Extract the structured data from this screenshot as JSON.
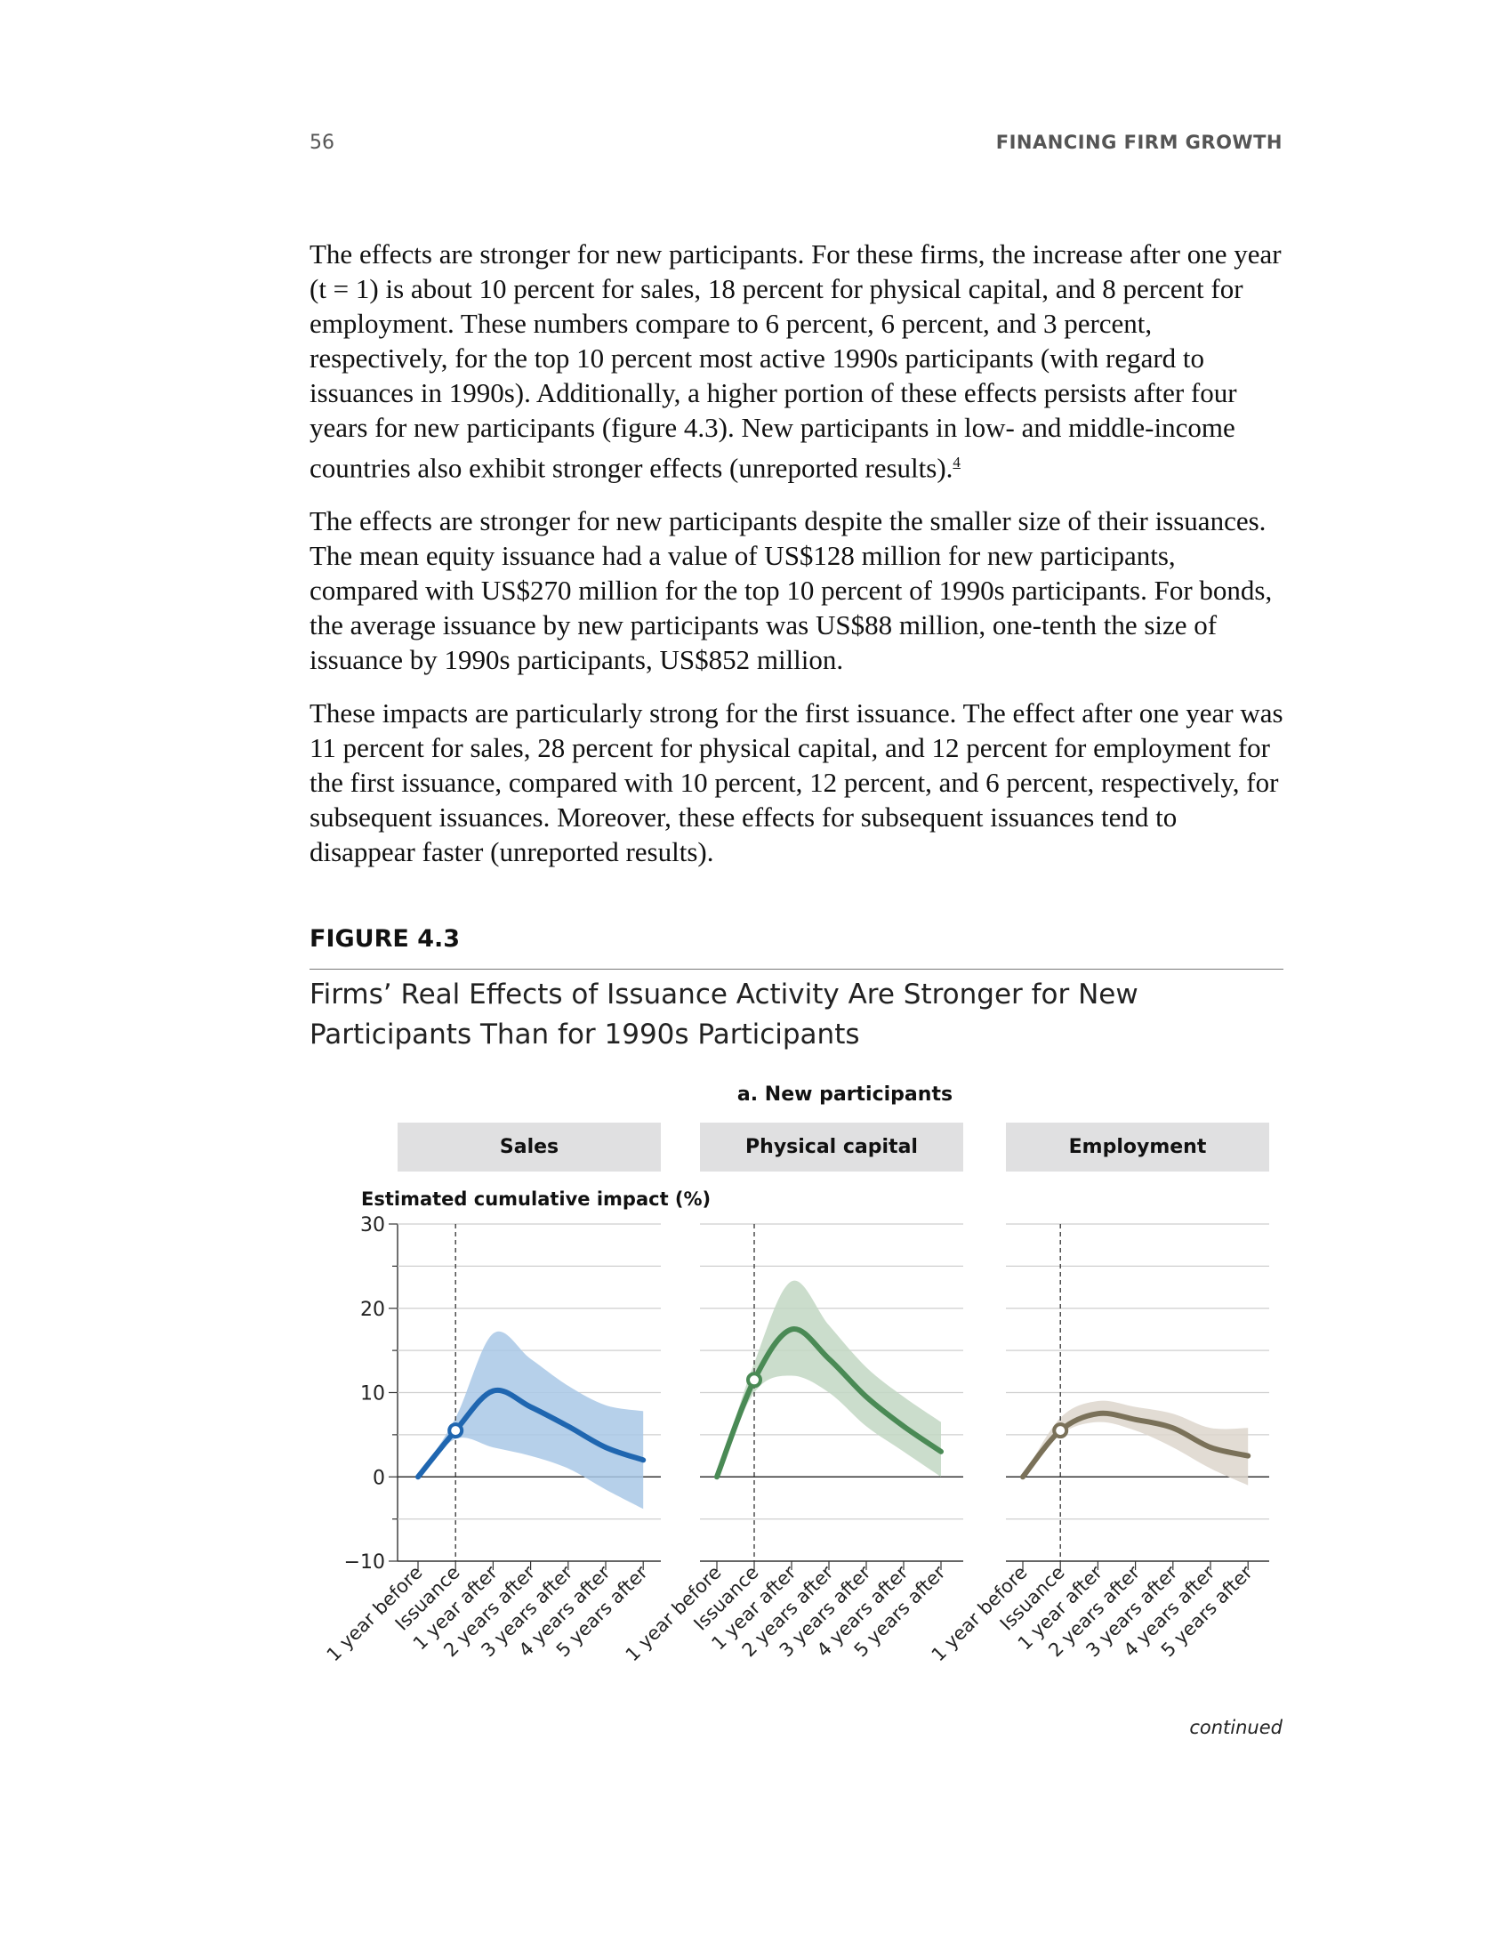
{
  "header": {
    "page_number": "56",
    "running_head": "FINANCING FIRM GROWTH"
  },
  "body": {
    "p1": "The effects are stronger for new participants. For these firms, the increase after one year (t = 1) is about 10 percent for sales, 18 percent for physical capital, and 8 percent for employment. These numbers compare to 6 percent, 6 percent, and 3 percent, respectively, for the top 10 percent most active 1990s participants (with regard to issuances in 1990s). Additionally, a higher portion of these effects persists after four years for new participants (figure 4.3). New participants in low- and middle-income countries also exhibit stronger effects (unreported results).",
    "p1_footnote": "4",
    "p2": "The effects are stronger for new participants despite the smaller size of their issuances. The mean equity issuance had a value of US$128 million for new participants, compared with US$270 million for the top 10 percent of 1990s participants. For bonds, the average issuance by new participants was US$88 million, one-tenth the size of issuance by 1990s participants, US$852 million.",
    "p3": "These impacts are particularly strong for the first issuance. The effect after one year was 11 percent for sales, 28 percent for physical capital, and 12 percent for employment for the first issuance, compared with 10 percent, 12 percent, and 6 percent, respectively, for subsequent issuances. Moreover, these effects for subsequent issuances tend to disappear faster (unreported results)."
  },
  "figure": {
    "label": "FIGURE 4.3",
    "title": "Firms’ Real Effects of Issuance Activity Are Stronger for New Participants Than for 1990s Participants",
    "continued": "continued"
  },
  "chart_data": {
    "type": "line",
    "panel_title": "a. New participants",
    "ylabel": "Estimated cumulative impact (%)",
    "ylim": [
      -10,
      30
    ],
    "yticks": [
      -10,
      0,
      10,
      20,
      30
    ],
    "categories": [
      "1 year before",
      "Issuance",
      "1 year after",
      "2 years after",
      "3 years after",
      "4 years after",
      "5 years after"
    ],
    "reference_line": "Issuance",
    "grid": true,
    "series": [
      {
        "name": "Sales",
        "color": "#1f66b0",
        "band_color": "#a9c8e6",
        "values": [
          0,
          5.5,
          10.2,
          8.3,
          6.0,
          3.5,
          2.0
        ],
        "lower": [
          0,
          4.5,
          3.5,
          2.5,
          1.0,
          -1.5,
          -3.8
        ],
        "upper": [
          0,
          7.0,
          17.0,
          14.0,
          10.8,
          8.5,
          7.8
        ]
      },
      {
        "name": "Physical capital",
        "color": "#4a8a55",
        "band_color": "#c2d7c3",
        "values": [
          0,
          11.5,
          17.5,
          14.0,
          9.5,
          6.0,
          3.0
        ],
        "lower": [
          0,
          10.0,
          12.0,
          10.0,
          6.0,
          3.0,
          0.0
        ],
        "upper": [
          0,
          13.5,
          23.2,
          18.0,
          13.0,
          9.5,
          6.5
        ]
      },
      {
        "name": "Employment",
        "color": "#7a7159",
        "band_color": "#ddd6cc",
        "values": [
          0,
          5.5,
          7.5,
          6.8,
          5.8,
          3.5,
          2.5
        ],
        "lower": [
          0,
          5.0,
          6.5,
          5.5,
          3.5,
          1.0,
          -1.0
        ],
        "upper": [
          0,
          7.0,
          9.0,
          8.3,
          7.5,
          5.8,
          5.8
        ]
      }
    ]
  }
}
